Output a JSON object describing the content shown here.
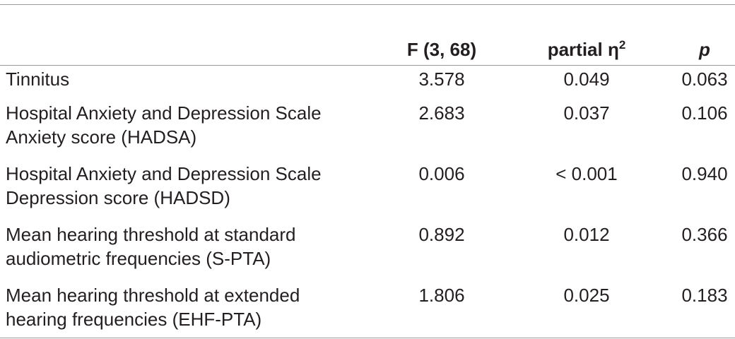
{
  "table": {
    "columns": [
      "F (3, 68)",
      {
        "text": "partial η",
        "sup": "2"
      },
      "p"
    ],
    "rows": [
      {
        "label": [
          "Tinnitus"
        ],
        "cells": [
          "3.578",
          "0.049",
          "0.063"
        ]
      },
      {
        "label": [
          "Hospital Anxiety and Depression Scale",
          "Anxiety score (HADSA)"
        ],
        "cells": [
          "2.683",
          "0.037",
          "0.106"
        ]
      },
      {
        "label": [
          "Hospital Anxiety and Depression Scale",
          "Depression score (HADSD)"
        ],
        "cells": [
          "0.006",
          "< 0.001",
          "0.940"
        ]
      },
      {
        "label": [
          "Mean hearing threshold at standard",
          "audiometric frequencies (S-PTA)"
        ],
        "cells": [
          "0.892",
          "0.012",
          "0.366"
        ]
      },
      {
        "label": [
          "Mean hearing threshold at extended",
          "hearing frequencies (EHF-PTA)"
        ],
        "cells": [
          "1.806",
          "0.025",
          "0.183"
        ]
      }
    ]
  }
}
